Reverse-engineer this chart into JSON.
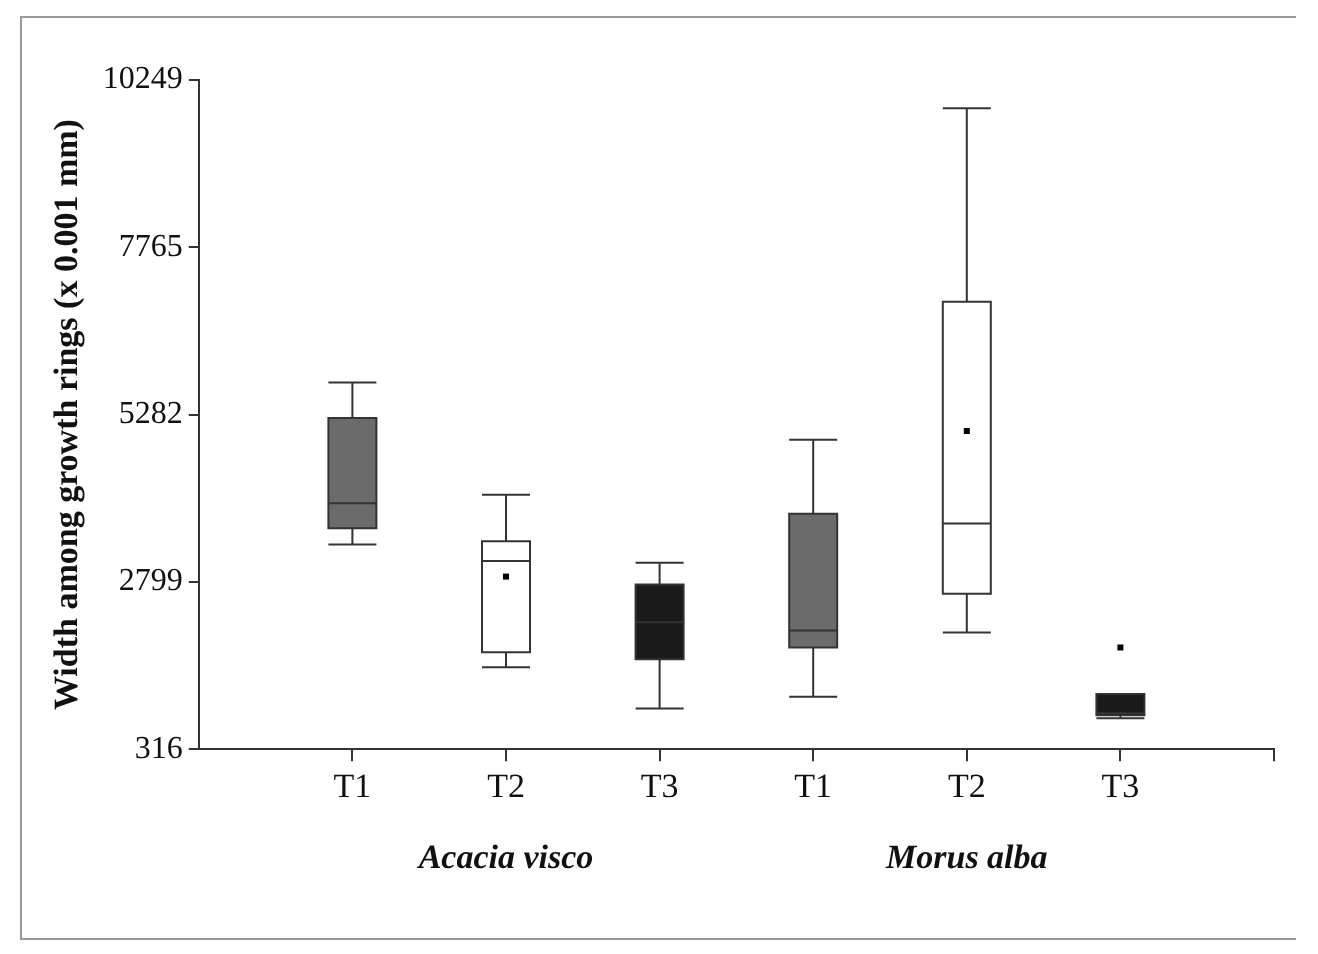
{
  "chart_data": {
    "type": "box",
    "ylabel": "Width among growth rings (x 0.001 mm)",
    "categories": [
      "T1",
      "T2",
      "T3",
      "T1",
      "T2",
      "T3"
    ],
    "colors": [
      "#6b6b6b",
      "#ffffff",
      "#1a1a1a",
      "#6b6b6b",
      "#ffffff",
      "#1a1a1a"
    ],
    "boxes": [
      {
        "low": 3354,
        "q1": 3597,
        "median": 3967,
        "q3": 5232,
        "high": 5758
      },
      {
        "low": 1534,
        "q1": 1756,
        "median": 3111,
        "q3": 3403,
        "high": 4093,
        "mean": 2878
      },
      {
        "low": 921,
        "q1": 1651,
        "median": 2200,
        "q3": 2761,
        "high": 3082
      },
      {
        "low": 1096,
        "q1": 1826,
        "median": 2077,
        "q3": 3812,
        "high": 4911
      },
      {
        "low": 2048,
        "q1": 2624,
        "median": 3666,
        "q3": 6956,
        "high": 9830,
        "mean": 5039
      },
      {
        "low": 775,
        "q1": 821,
        "median": 850,
        "q3": 1134,
        "high": 1134,
        "outliers": [
          1826
        ]
      }
    ],
    "ylim": [
      316,
      10249
    ],
    "yticks": [
      316,
      2799,
      5282,
      7765,
      10249
    ],
    "grid": false,
    "legend": false,
    "annotations": [
      "Acacia visco",
      "Morus alba"
    ]
  }
}
